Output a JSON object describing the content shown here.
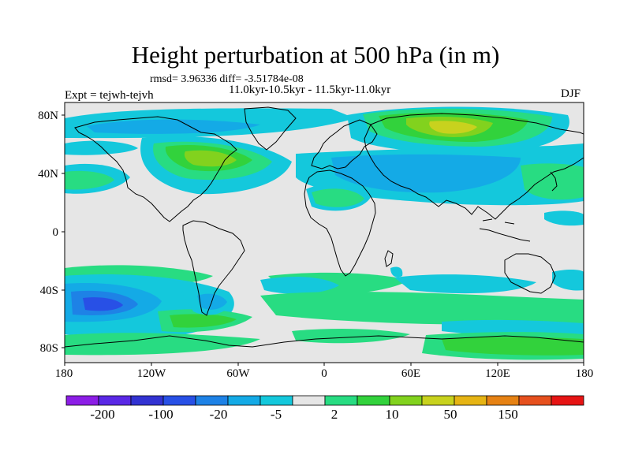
{
  "title": "Height perturbation at 500 hPa (in m)",
  "stats": "rmsd= 3.96336 diff= -3.51784e-08",
  "period": "11.0kyr-10.5kyr - 11.5kyr-11.0kyr",
  "experiment": "Expt = tejwh-tejvh",
  "season": "DJF",
  "lat_labels": [
    "80N",
    "40N",
    "0",
    "40S",
    "80S"
  ],
  "lon_labels": [
    "180",
    "120W",
    "60W",
    "0",
    "60E",
    "120E",
    "180"
  ],
  "colorbar": {
    "colors": [
      "#8c1ee6",
      "#5a28e6",
      "#3232d2",
      "#2850e6",
      "#1e82e6",
      "#14aae6",
      "#14c8dc",
      "#e6e6e6",
      "#28dc82",
      "#32d23c",
      "#82d21e",
      "#c8d21e",
      "#e6b414",
      "#e68214",
      "#e6501e",
      "#e61414"
    ],
    "labels": [
      "-200",
      "-100",
      "-20",
      "-5",
      "2",
      "10",
      "50",
      "150"
    ]
  },
  "palette": {
    "neutral": "#e6e6e6",
    "blue_dark": "#2850e6",
    "blue_mid": "#1e82e6",
    "blue_light": "#14aae6",
    "cyan": "#14c8dc",
    "green_light": "#28dc82",
    "green": "#32d23c",
    "yellow_green": "#82d21e",
    "yellow": "#c8d21e"
  }
}
